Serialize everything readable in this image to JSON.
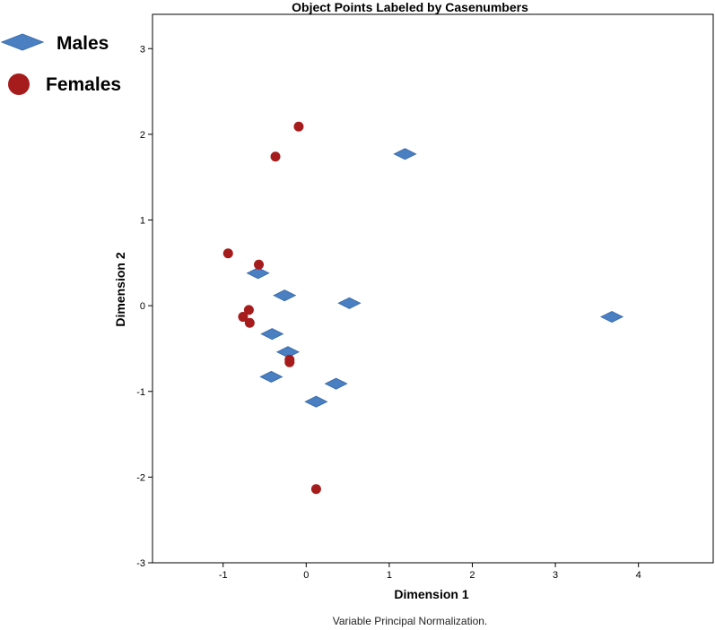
{
  "chart_data": {
    "type": "scatter",
    "title": "Object Points Labeled by Casenumbers",
    "xlabel": "Dimension 1",
    "ylabel": "Dimension 2",
    "footnote": "Variable Principal Normalization.",
    "xlim": [
      -1.85,
      4.9
    ],
    "ylim": [
      -3,
      3.4
    ],
    "xticks": [
      -1,
      0,
      1,
      2,
      3,
      4
    ],
    "yticks": [
      -3,
      -2,
      -1,
      0,
      1,
      2,
      3
    ],
    "grid": false,
    "legend_position": "top-left",
    "series": [
      {
        "name": "Males",
        "marker": "diamond",
        "color": "#4a7fc1",
        "points": [
          {
            "x": 1.19,
            "y": 1.77
          },
          {
            "x": 3.68,
            "y": -0.13
          },
          {
            "x": -0.58,
            "y": 0.38
          },
          {
            "x": -0.26,
            "y": 0.12
          },
          {
            "x": 0.52,
            "y": 0.03
          },
          {
            "x": -0.41,
            "y": -0.33
          },
          {
            "x": -0.22,
            "y": -0.54
          },
          {
            "x": -0.42,
            "y": -0.83
          },
          {
            "x": 0.36,
            "y": -0.91
          },
          {
            "x": 0.12,
            "y": -1.12
          }
        ]
      },
      {
        "name": "Females",
        "marker": "circle",
        "color": "#a61c1c",
        "points": [
          {
            "x": -0.09,
            "y": 2.09
          },
          {
            "x": -0.37,
            "y": 1.74
          },
          {
            "x": -0.94,
            "y": 0.61
          },
          {
            "x": -0.57,
            "y": 0.48
          },
          {
            "x": -0.69,
            "y": -0.05
          },
          {
            "x": -0.76,
            "y": -0.13
          },
          {
            "x": -0.68,
            "y": -0.2
          },
          {
            "x": -0.2,
            "y": -0.63
          },
          {
            "x": -0.2,
            "y": -0.66
          },
          {
            "x": 0.12,
            "y": -2.14
          }
        ]
      }
    ]
  }
}
